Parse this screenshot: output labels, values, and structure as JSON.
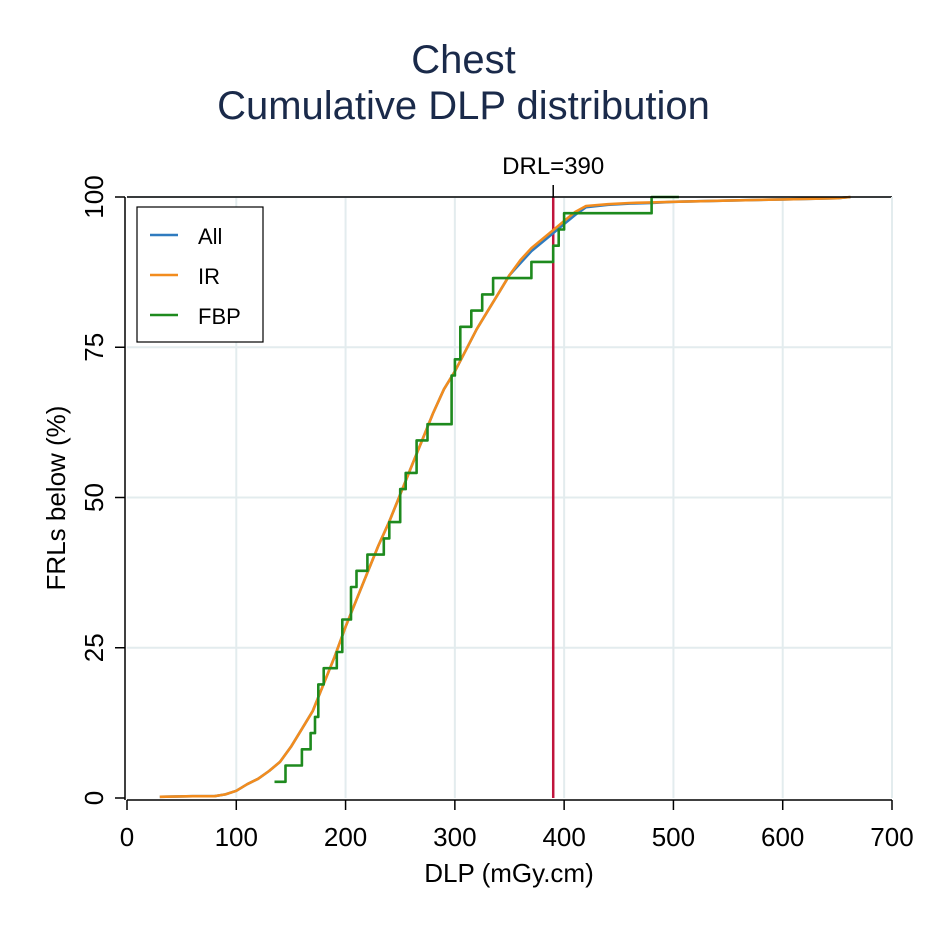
{
  "chart_data": {
    "type": "line",
    "title": "Chest",
    "subtitle": "Cumulative DLP distribution",
    "xlabel": "DLP (mGy.cm)",
    "ylabel": "FRLs below (%)",
    "xlim": [
      0,
      700
    ],
    "ylim": [
      0,
      100
    ],
    "xticks": [
      0,
      100,
      200,
      300,
      400,
      500,
      600,
      700
    ],
    "yticks": [
      0,
      25,
      50,
      75,
      100
    ],
    "grid": true,
    "legend_position": "top-left",
    "reference_line": {
      "label": "DRL=390",
      "x": 390,
      "color": "#c0143c"
    },
    "series": [
      {
        "name": "All",
        "color": "#2f7bbf",
        "step": false,
        "x": [
          30,
          60,
          80,
          90,
          100,
          110,
          120,
          130,
          140,
          150,
          160,
          170,
          180,
          190,
          200,
          210,
          220,
          230,
          240,
          250,
          260,
          270,
          280,
          290,
          300,
          310,
          320,
          330,
          340,
          350,
          360,
          370,
          380,
          390,
          400,
          410,
          420,
          440,
          460,
          480,
          500,
          550,
          600,
          650,
          662
        ],
        "y": [
          0.2,
          0.3,
          0.3,
          0.6,
          1.2,
          2.3,
          3.2,
          4.5,
          6.0,
          8.5,
          11.5,
          14.5,
          19.0,
          23.5,
          28.5,
          33.0,
          37.5,
          42.0,
          46.0,
          50.5,
          55.0,
          59.5,
          64.0,
          68.0,
          71.0,
          74.5,
          78.0,
          81.0,
          84.0,
          87.0,
          89.0,
          91.0,
          92.5,
          94.0,
          95.5,
          97.0,
          98.3,
          98.7,
          98.9,
          99.0,
          99.2,
          99.4,
          99.6,
          99.8,
          100
        ]
      },
      {
        "name": "IR",
        "color": "#f28c1e",
        "step": false,
        "x": [
          30,
          60,
          80,
          90,
          100,
          110,
          120,
          130,
          140,
          150,
          160,
          170,
          180,
          190,
          200,
          210,
          220,
          230,
          240,
          250,
          260,
          270,
          280,
          290,
          300,
          310,
          320,
          330,
          340,
          350,
          360,
          370,
          380,
          390,
          400,
          410,
          420,
          440,
          460,
          480,
          500,
          550,
          600,
          650,
          662
        ],
        "y": [
          0.2,
          0.3,
          0.3,
          0.6,
          1.2,
          2.3,
          3.2,
          4.5,
          6.0,
          8.5,
          11.5,
          14.5,
          19.0,
          23.5,
          28.5,
          33.0,
          37.5,
          42.0,
          46.0,
          50.5,
          55.0,
          59.5,
          64.0,
          68.0,
          71.0,
          74.5,
          78.0,
          81.0,
          84.0,
          87.0,
          89.5,
          91.5,
          93.0,
          94.5,
          96.0,
          97.5,
          98.5,
          98.8,
          99.0,
          99.1,
          99.2,
          99.4,
          99.6,
          99.8,
          100
        ]
      },
      {
        "name": "FBP",
        "color": "#1e8a1e",
        "step": true,
        "x": [
          135,
          145,
          160,
          168,
          172,
          175,
          180,
          192,
          197,
          205,
          210,
          220,
          235,
          240,
          250,
          255,
          265,
          275,
          297,
          300,
          305,
          315,
          325,
          335,
          340,
          370,
          390,
          395,
          400,
          480,
          505
        ],
        "y": [
          2.7,
          5.4,
          8.1,
          10.8,
          13.5,
          18.9,
          21.6,
          24.3,
          29.7,
          35.1,
          37.8,
          40.5,
          43.2,
          45.9,
          51.4,
          54.1,
          59.5,
          62.2,
          70.3,
          73.0,
          78.4,
          81.1,
          83.8,
          86.5,
          86.5,
          89.2,
          91.9,
          94.6,
          97.3,
          100,
          100
        ]
      }
    ]
  }
}
